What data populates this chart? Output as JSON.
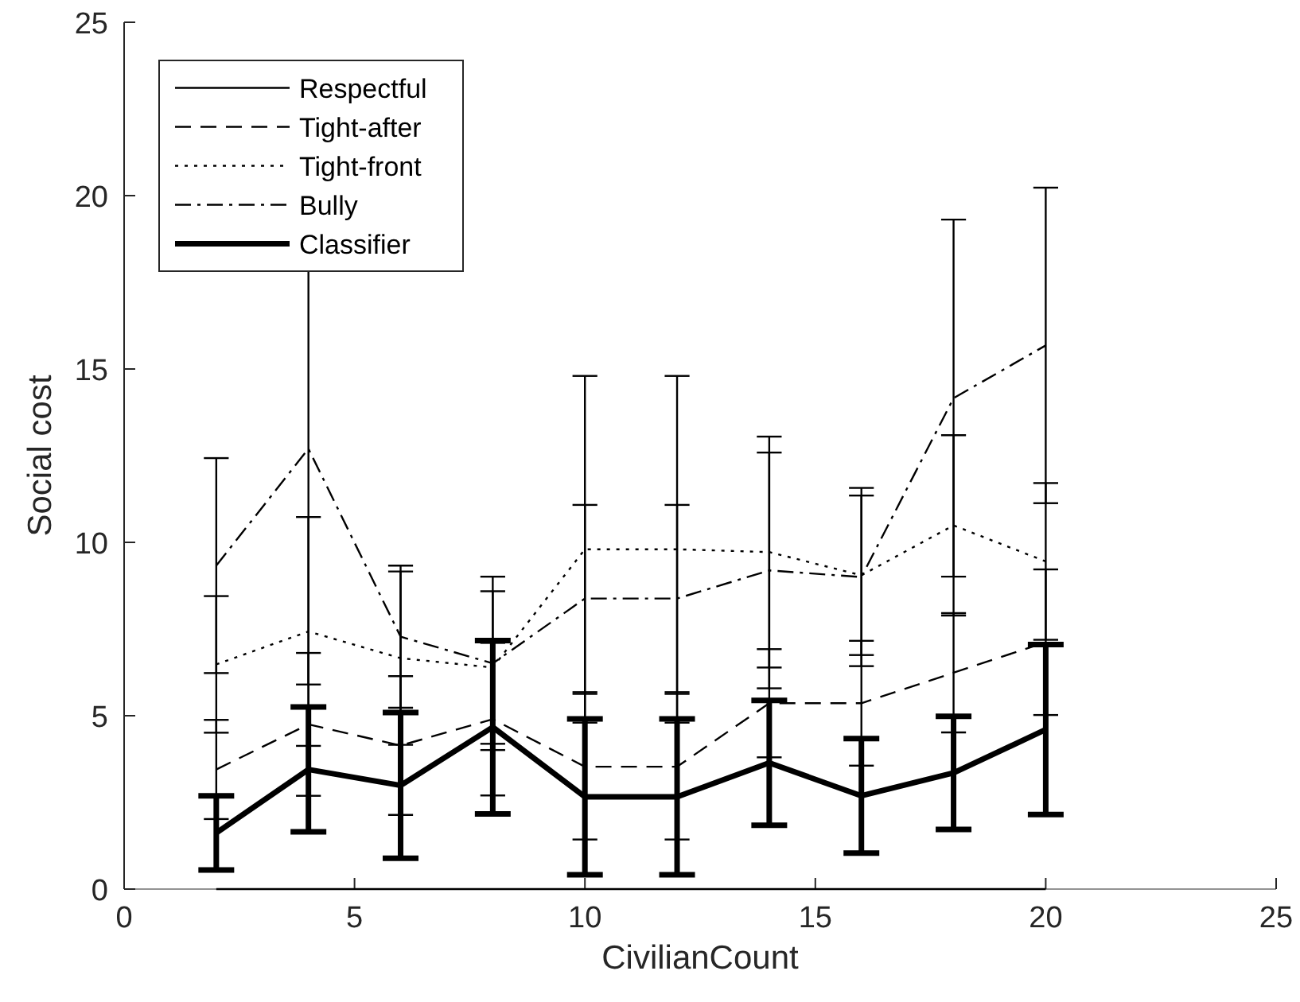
{
  "chart_data": {
    "type": "line",
    "xlabel": "CivilianCount",
    "ylabel": "Social cost",
    "x": [
      2,
      4,
      6,
      8,
      10,
      12,
      14,
      16,
      18,
      20
    ],
    "xlim": [
      0,
      25
    ],
    "xticks": [
      0,
      5,
      10,
      15,
      20,
      25
    ],
    "ylim": [
      0,
      25
    ],
    "yticks": [
      0,
      5,
      10,
      15,
      20,
      25
    ],
    "legend": "top left",
    "grid": false,
    "marker": "none",
    "series": [
      {
        "name": "Respectful",
        "color": "#000000",
        "line_style": "solid",
        "values": [
          0,
          0,
          0,
          0,
          0,
          0,
          0,
          0,
          0,
          0
        ]
      },
      {
        "name": "Tight-after",
        "color": "#000000",
        "line_style": "dashed",
        "values": [
          3.45,
          4.75,
          4.14,
          4.9,
          3.53,
          3.53,
          5.36,
          5.36,
          6.24,
          7.12
        ],
        "errors": [
          1.43,
          2.06,
          2.0,
          2.2,
          2.1,
          2.1,
          1.56,
          1.8,
          1.72,
          2.1
        ]
      },
      {
        "name": "Tight-front",
        "color": "#000000",
        "line_style": "dotted",
        "values": [
          6.48,
          7.43,
          6.66,
          6.39,
          9.8,
          9.8,
          9.72,
          9.05,
          10.49,
          9.45
        ],
        "errors": [
          1.97,
          3.3,
          2.5,
          2.2,
          5.0,
          5.0,
          3.33,
          2.3,
          2.6,
          2.26
        ]
      },
      {
        "name": "Bully",
        "color": "#000000",
        "line_style": "dashdot",
        "values": [
          9.33,
          12.7,
          7.28,
          6.51,
          8.38,
          8.38,
          9.19,
          9.0,
          14.16,
          15.68
        ],
        "errors": [
          3.1,
          6.8,
          2.05,
          2.5,
          2.7,
          2.7,
          3.4,
          2.57,
          5.15,
          4.55
        ]
      },
      {
        "name": "Classifier",
        "color": "#000000",
        "line_style": "solid",
        "values": [
          1.62,
          3.45,
          2.99,
          4.67,
          2.66,
          2.66,
          3.64,
          2.69,
          3.35,
          4.6
        ],
        "errors": [
          1.07,
          1.8,
          2.1,
          2.5,
          2.25,
          2.25,
          1.8,
          1.65,
          1.63,
          2.45
        ]
      }
    ]
  }
}
